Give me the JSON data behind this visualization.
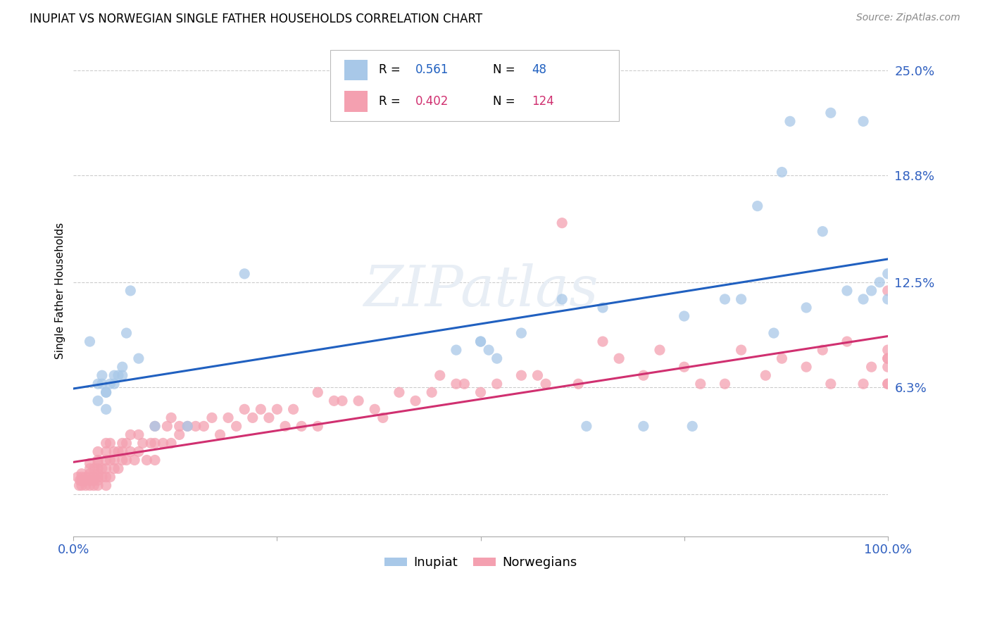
{
  "title": "INUPIAT VS NORWEGIAN SINGLE FATHER HOUSEHOLDS CORRELATION CHART",
  "source": "Source: ZipAtlas.com",
  "ylabel": "Single Father Households",
  "xlabel": "",
  "legend_label1": "Inupiat",
  "legend_label2": "Norwegians",
  "r1": 0.561,
  "n1": 48,
  "r2": 0.402,
  "n2": 124,
  "color1": "#a8c8e8",
  "color2": "#f4a0b0",
  "line_color1": "#2060c0",
  "line_color2": "#d03070",
  "tick_color": "#3060c0",
  "bg_color": "#ffffff",
  "grid_color": "#cccccc",
  "watermark_color": "#e8eef5",
  "inupiat_x": [
    0.02,
    0.03,
    0.03,
    0.035,
    0.035,
    0.04,
    0.04,
    0.04,
    0.045,
    0.05,
    0.05,
    0.055,
    0.06,
    0.06,
    0.065,
    0.07,
    0.08,
    0.1,
    0.14,
    0.21,
    0.47,
    0.5,
    0.5,
    0.51,
    0.52,
    0.55,
    0.6,
    0.63,
    0.65,
    0.7,
    0.75,
    0.76,
    0.8,
    0.82,
    0.84,
    0.86,
    0.87,
    0.88,
    0.9,
    0.92,
    0.93,
    0.95,
    0.97,
    0.97,
    0.98,
    0.99,
    1.0,
    1.0
  ],
  "inupiat_y": [
    0.09,
    0.055,
    0.065,
    0.065,
    0.07,
    0.05,
    0.06,
    0.06,
    0.065,
    0.065,
    0.07,
    0.07,
    0.07,
    0.075,
    0.095,
    0.12,
    0.08,
    0.04,
    0.04,
    0.13,
    0.085,
    0.09,
    0.09,
    0.085,
    0.08,
    0.095,
    0.115,
    0.04,
    0.11,
    0.04,
    0.105,
    0.04,
    0.115,
    0.115,
    0.17,
    0.095,
    0.19,
    0.22,
    0.11,
    0.155,
    0.225,
    0.12,
    0.115,
    0.22,
    0.12,
    0.125,
    0.115,
    0.13
  ],
  "norwegian_x": [
    0.005,
    0.007,
    0.008,
    0.01,
    0.01,
    0.01,
    0.01,
    0.015,
    0.015,
    0.015,
    0.02,
    0.02,
    0.02,
    0.02,
    0.02,
    0.02,
    0.025,
    0.025,
    0.025,
    0.025,
    0.03,
    0.03,
    0.03,
    0.03,
    0.03,
    0.03,
    0.03,
    0.03,
    0.035,
    0.035,
    0.04,
    0.04,
    0.04,
    0.04,
    0.04,
    0.04,
    0.045,
    0.045,
    0.045,
    0.05,
    0.05,
    0.05,
    0.055,
    0.055,
    0.06,
    0.06,
    0.06,
    0.065,
    0.065,
    0.07,
    0.07,
    0.075,
    0.08,
    0.08,
    0.085,
    0.09,
    0.095,
    0.1,
    0.1,
    0.1,
    0.11,
    0.115,
    0.12,
    0.12,
    0.13,
    0.13,
    0.14,
    0.15,
    0.16,
    0.17,
    0.18,
    0.19,
    0.2,
    0.21,
    0.22,
    0.23,
    0.24,
    0.25,
    0.26,
    0.27,
    0.28,
    0.3,
    0.3,
    0.32,
    0.33,
    0.35,
    0.37,
    0.38,
    0.4,
    0.42,
    0.44,
    0.45,
    0.47,
    0.48,
    0.5,
    0.52,
    0.55,
    0.57,
    0.58,
    0.6,
    0.62,
    0.65,
    0.67,
    0.7,
    0.72,
    0.75,
    0.77,
    0.8,
    0.82,
    0.85,
    0.87,
    0.9,
    0.92,
    0.93,
    0.95,
    0.97,
    0.98,
    1.0,
    1.0,
    1.0,
    1.0,
    1.0,
    1.0,
    1.0
  ],
  "norwegian_y": [
    0.01,
    0.005,
    0.008,
    0.005,
    0.008,
    0.01,
    0.012,
    0.005,
    0.008,
    0.01,
    0.005,
    0.008,
    0.01,
    0.012,
    0.015,
    0.018,
    0.005,
    0.008,
    0.01,
    0.015,
    0.005,
    0.008,
    0.01,
    0.012,
    0.015,
    0.018,
    0.02,
    0.025,
    0.01,
    0.015,
    0.005,
    0.01,
    0.015,
    0.02,
    0.025,
    0.03,
    0.01,
    0.02,
    0.03,
    0.015,
    0.02,
    0.025,
    0.015,
    0.025,
    0.02,
    0.025,
    0.03,
    0.02,
    0.03,
    0.025,
    0.035,
    0.02,
    0.025,
    0.035,
    0.03,
    0.02,
    0.03,
    0.02,
    0.03,
    0.04,
    0.03,
    0.04,
    0.03,
    0.045,
    0.035,
    0.04,
    0.04,
    0.04,
    0.04,
    0.045,
    0.035,
    0.045,
    0.04,
    0.05,
    0.045,
    0.05,
    0.045,
    0.05,
    0.04,
    0.05,
    0.04,
    0.04,
    0.06,
    0.055,
    0.055,
    0.055,
    0.05,
    0.045,
    0.06,
    0.055,
    0.06,
    0.07,
    0.065,
    0.065,
    0.06,
    0.065,
    0.07,
    0.07,
    0.065,
    0.16,
    0.065,
    0.09,
    0.08,
    0.07,
    0.085,
    0.075,
    0.065,
    0.065,
    0.085,
    0.07,
    0.08,
    0.075,
    0.085,
    0.065,
    0.09,
    0.065,
    0.075,
    0.075,
    0.065,
    0.085,
    0.08,
    0.065,
    0.12,
    0.08
  ],
  "xlim": [
    0.0,
    1.0
  ],
  "ylim": [
    -0.025,
    0.265
  ],
  "yticks": [
    0.0,
    0.063,
    0.125,
    0.188,
    0.25
  ],
  "ytick_labels": [
    "",
    "6.3%",
    "12.5%",
    "18.8%",
    "25.0%"
  ],
  "xticks": [
    0.0,
    0.25,
    0.5,
    0.75,
    1.0
  ],
  "xtick_labels": [
    "0.0%",
    "",
    "",
    "",
    "100.0%"
  ]
}
